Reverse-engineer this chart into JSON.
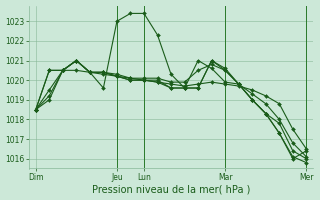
{
  "background_color": "#cce8d8",
  "grid_color": "#88b898",
  "line_color": "#1a5c1a",
  "marker_color": "#1a5c1a",
  "xlabel": "Pression niveau de la mer( hPa )",
  "ylim": [
    1015.5,
    1023.8
  ],
  "yticks": [
    1016,
    1017,
    1018,
    1019,
    1020,
    1021,
    1022,
    1023
  ],
  "xtick_labels": [
    "Dim",
    "Jeu",
    "Lun",
    "Mar",
    "Mer"
  ],
  "xtick_positions": [
    0,
    6,
    8,
    14,
    20
  ],
  "series": [
    [
      1018.5,
      1019.2,
      1020.5,
      1020.5,
      1020.4,
      1020.3,
      1020.2,
      1020.1,
      1020.0,
      1019.9,
      1019.8,
      1019.7,
      1019.8,
      1019.9,
      1019.8,
      1019.7,
      1019.5,
      1019.2,
      1018.8,
      1017.5,
      1016.5
    ],
    [
      1018.5,
      1019.0,
      1020.5,
      1021.0,
      1020.4,
      1019.6,
      1023.0,
      1023.4,
      1023.4,
      1022.3,
      1020.3,
      1019.6,
      1019.6,
      1021.0,
      1020.5,
      1019.8,
      1019.0,
      1018.3,
      1017.3,
      1016.1,
      1015.8
    ],
    [
      1018.5,
      1020.5,
      1020.5,
      1021.0,
      1020.4,
      1020.4,
      1020.2,
      1020.0,
      1020.0,
      1019.9,
      1019.6,
      1019.6,
      1021.0,
      1020.6,
      1019.9,
      1019.8,
      1019.0,
      1018.3,
      1017.8,
      1016.4,
      1016.0
    ],
    [
      1018.5,
      1019.5,
      1020.5,
      1021.0,
      1020.4,
      1020.4,
      1020.2,
      1020.0,
      1020.0,
      1020.0,
      1019.6,
      1019.6,
      1019.6,
      1021.0,
      1020.6,
      1019.8,
      1019.0,
      1018.3,
      1017.3,
      1016.0,
      1016.4
    ],
    [
      1018.5,
      1020.5,
      1020.5,
      1021.0,
      1020.4,
      1020.4,
      1020.3,
      1020.1,
      1020.1,
      1020.1,
      1019.9,
      1019.9,
      1020.5,
      1020.8,
      1020.5,
      1019.8,
      1019.3,
      1018.8,
      1018.0,
      1016.8,
      1016.1
    ]
  ],
  "vlines": [
    6,
    8,
    14,
    20
  ],
  "vline_color": "#2a7a2a",
  "font_size_ticks": 5.5,
  "font_size_xlabel": 7
}
